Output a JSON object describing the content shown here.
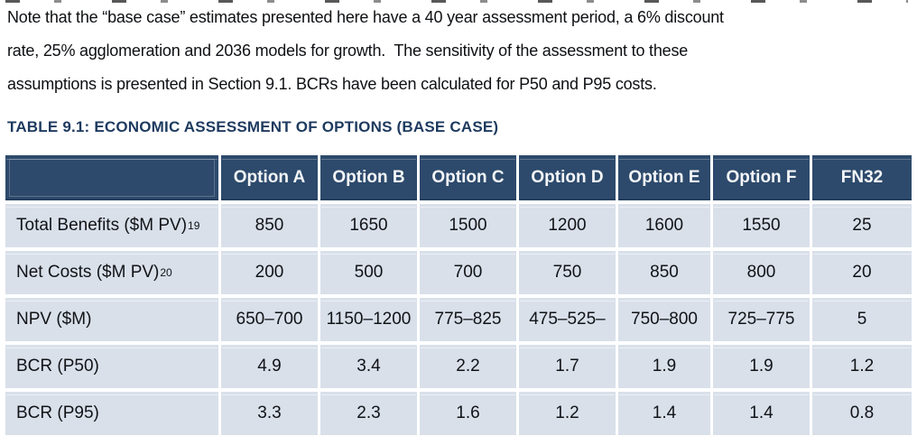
{
  "paragraph": {
    "lines": [
      "Note that the “base case” estimates presented here have a 40 year assessment period, a 6% discount",
      "rate, 25% agglomeration and 2036 models for growth.  The sensitivity of the assessment to these",
      "assumptions is presented in Section 9.1. BCRs have been calculated for P50 and P95 costs."
    ]
  },
  "table": {
    "caption": "TABLE 9.1: ECONOMIC ASSESSMENT OF OPTIONS (BASE CASE)",
    "header": [
      "",
      "Option A",
      "Option B",
      "Option C",
      "Option D",
      "Option E",
      "Option F",
      "FN32"
    ],
    "rows": [
      {
        "label": "Total Benefits ($M PV)",
        "sup": "19",
        "values": [
          "850",
          "1650",
          "1500",
          "1200",
          "1600",
          "1550",
          "25"
        ]
      },
      {
        "label": "Net Costs ($M PV)",
        "sup": "20",
        "values": [
          "200",
          "500",
          "700",
          "750",
          "850",
          "800",
          "20"
        ]
      },
      {
        "label": "NPV ($M)",
        "sup": "",
        "values": [
          "650–700",
          "1150–1200",
          "775–825",
          "475–525–",
          "750–800",
          "725–775",
          "5"
        ]
      },
      {
        "label": "BCR (P50)",
        "sup": "",
        "values": [
          "4.9",
          "3.4",
          "2.2",
          "1.7",
          "1.9",
          "1.9",
          "1.2"
        ]
      },
      {
        "label": "BCR (P95)",
        "sup": "",
        "values": [
          "3.3",
          "2.3",
          "1.6",
          "1.2",
          "1.4",
          "1.4",
          "0.8"
        ]
      }
    ]
  },
  "colors": {
    "header_bg": "#2d4a6c",
    "header_text": "#f4f6f8",
    "row_bg": "#d9e0ea",
    "caption_color": "#1e3a5f",
    "body_text": "#0e1013",
    "page_bg": "#ffffff"
  }
}
